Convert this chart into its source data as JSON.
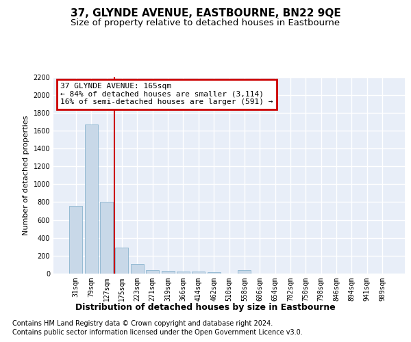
{
  "title": "37, GLYNDE AVENUE, EASTBOURNE, BN22 9QE",
  "subtitle": "Size of property relative to detached houses in Eastbourne",
  "xlabel": "Distribution of detached houses by size in Eastbourne",
  "ylabel": "Number of detached properties",
  "categories": [
    "31sqm",
    "79sqm",
    "127sqm",
    "175sqm",
    "223sqm",
    "271sqm",
    "319sqm",
    "366sqm",
    "414sqm",
    "462sqm",
    "510sqm",
    "558sqm",
    "606sqm",
    "654sqm",
    "702sqm",
    "750sqm",
    "798sqm",
    "846sqm",
    "894sqm",
    "941sqm",
    "989sqm"
  ],
  "values": [
    760,
    1670,
    800,
    290,
    110,
    40,
    30,
    20,
    20,
    15,
    0,
    40,
    0,
    0,
    0,
    0,
    0,
    0,
    0,
    0,
    0
  ],
  "bar_color": "#c8d8e8",
  "bar_edge_color": "#7aaac8",
  "background_color": "#e8eef8",
  "grid_color": "#ffffff",
  "annotation_box_text": "37 GLYNDE AVENUE: 165sqm\n← 84% of detached houses are smaller (3,114)\n16% of semi-detached houses are larger (591) →",
  "annotation_box_color": "#cc0000",
  "vline_x_index": 2.5,
  "vline_color": "#cc0000",
  "ylim": [
    0,
    2200
  ],
  "yticks": [
    0,
    200,
    400,
    600,
    800,
    1000,
    1200,
    1400,
    1600,
    1800,
    2000,
    2200
  ],
  "footer_line1": "Contains HM Land Registry data © Crown copyright and database right 2024.",
  "footer_line2": "Contains public sector information licensed under the Open Government Licence v3.0.",
  "title_fontsize": 11,
  "subtitle_fontsize": 9.5,
  "xlabel_fontsize": 9,
  "ylabel_fontsize": 8,
  "tick_fontsize": 7,
  "footer_fontsize": 7,
  "annotation_fontsize": 8
}
